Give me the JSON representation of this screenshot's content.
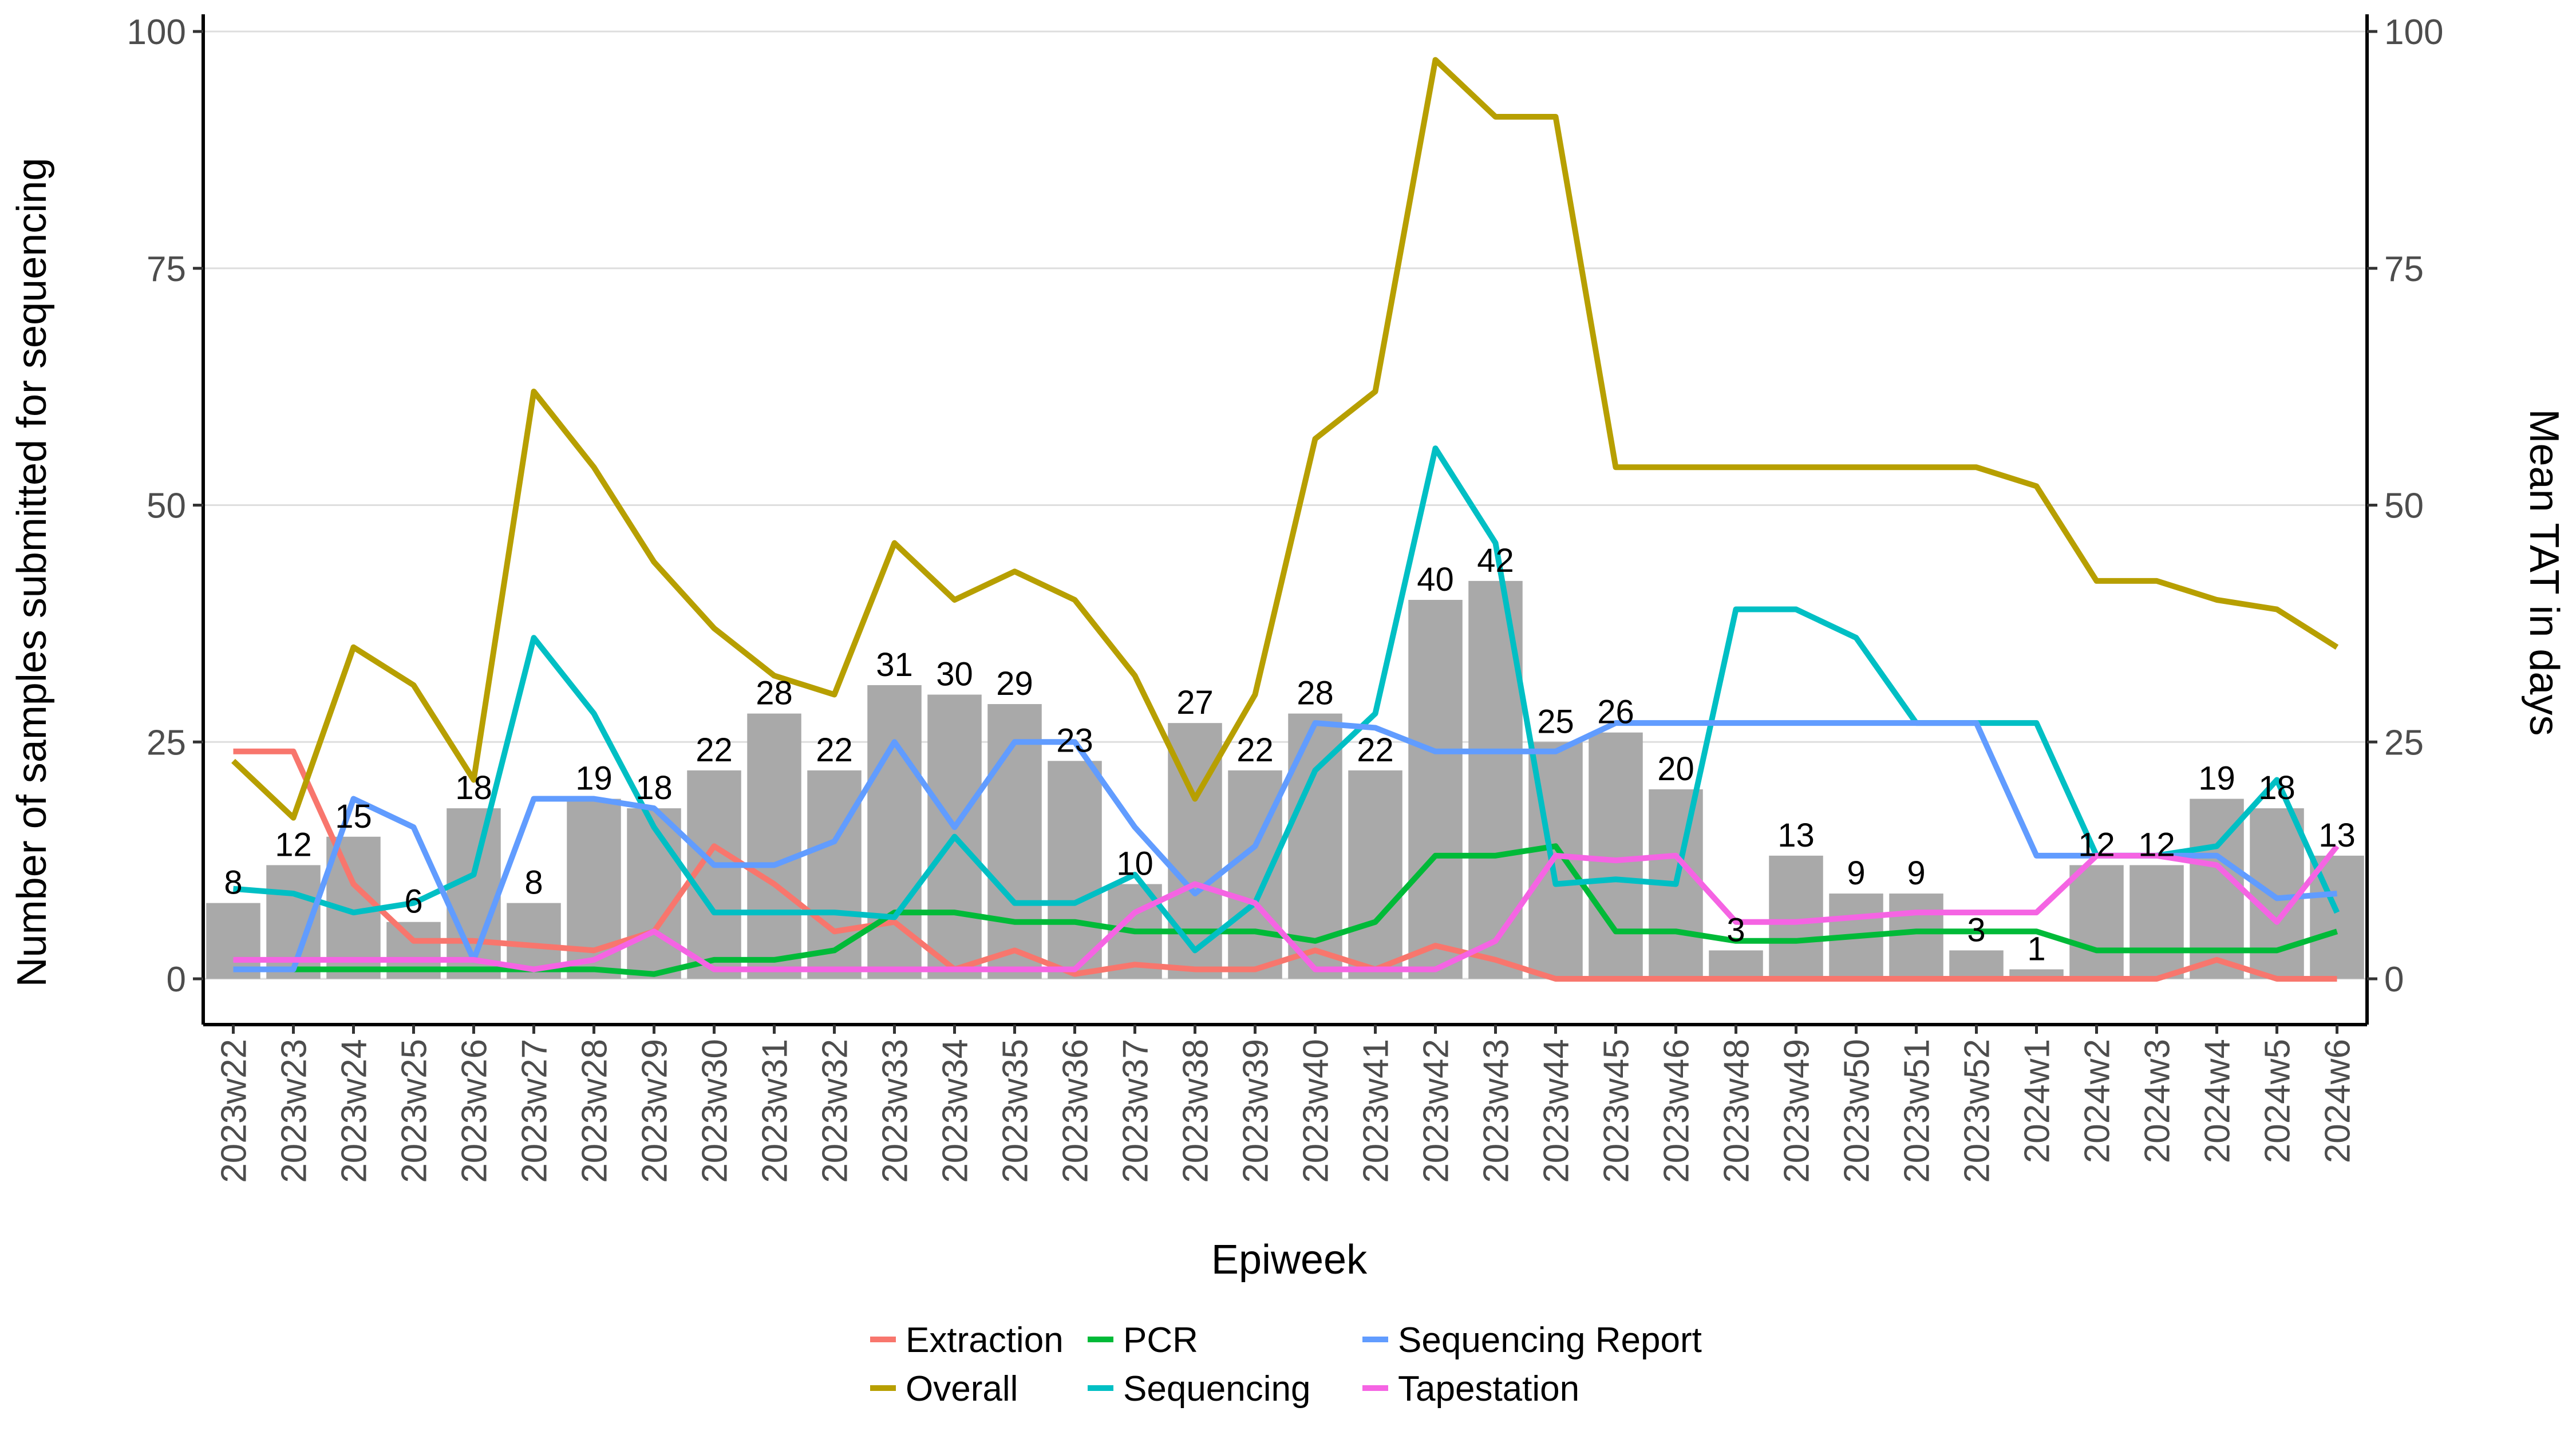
{
  "chart_data": {
    "type": "bar",
    "title": "",
    "xlabel": "Epiweek",
    "ylabel": "Number of samples submitted for sequencing",
    "y2label": "Mean TAT in days",
    "ylim": [
      0,
      100
    ],
    "y2lim": [
      0,
      100
    ],
    "yticks": [
      0,
      25,
      50,
      75,
      100
    ],
    "y2ticks": [
      0,
      25,
      50,
      75,
      100
    ],
    "grid": true,
    "legend_position": "bottom",
    "categories": [
      "2023w22",
      "2023w23",
      "2023w24",
      "2023w25",
      "2023w26",
      "2023w27",
      "2023w28",
      "2023w29",
      "2023w30",
      "2023w31",
      "2023w32",
      "2023w33",
      "2023w34",
      "2023w35",
      "2023w36",
      "2023w37",
      "2023w38",
      "2023w39",
      "2023w40",
      "2023w41",
      "2023w42",
      "2023w43",
      "2023w44",
      "2023w45",
      "2023w46",
      "2023w48",
      "2023w49",
      "2023w50",
      "2023w51",
      "2023w52",
      "2024w1",
      "2024w2",
      "2024w3",
      "2024w4",
      "2024w5",
      "2024w6"
    ],
    "bars": {
      "name": "Samples submitted",
      "color": "#a9a9a9",
      "values": [
        8,
        12,
        15,
        6,
        18,
        8,
        19,
        18,
        22,
        28,
        22,
        31,
        30,
        29,
        23,
        10,
        27,
        22,
        28,
        22,
        40,
        42,
        25,
        26,
        20,
        3,
        13,
        9,
        9,
        3,
        1,
        12,
        12,
        19,
        18,
        13
      ],
      "labels": [
        "8",
        "12",
        "15",
        "6",
        "18",
        "8",
        "19",
        "18",
        "22",
        "28",
        "22",
        "31",
        "30",
        "29",
        "23",
        "10",
        "27",
        "22",
        "28",
        "22",
        "40",
        "42",
        "25",
        "26",
        "20",
        "3",
        "13",
        "9",
        "9",
        "3",
        "1",
        "12",
        "12",
        "19",
        "18",
        "13"
      ]
    },
    "series": [
      {
        "name": "Extraction",
        "color": "#f8766d",
        "axis": "right",
        "values": [
          24,
          24,
          10,
          4,
          4,
          3.5,
          3,
          5,
          14,
          10,
          5,
          6,
          1,
          3,
          0.5,
          1.5,
          1,
          1,
          3,
          1,
          3.5,
          2,
          0,
          0,
          0,
          0,
          0,
          0,
          0,
          0,
          0,
          0,
          0,
          2,
          0,
          0
        ]
      },
      {
        "name": "Overall",
        "color": "#b79f00",
        "axis": "right",
        "values": [
          23,
          17,
          35,
          31,
          21,
          62,
          54,
          44,
          37,
          32,
          30,
          46,
          40,
          43,
          40,
          32,
          19,
          30,
          57,
          62,
          97,
          91,
          91,
          54,
          54,
          54,
          54,
          54,
          54,
          54,
          52,
          42,
          42,
          40,
          39,
          35
        ]
      },
      {
        "name": "PCR",
        "color": "#00ba38",
        "axis": "right",
        "values": [
          1,
          1,
          1,
          1,
          1,
          1,
          1,
          0.5,
          2,
          2,
          3,
          7,
          7,
          6,
          6,
          5,
          5,
          5,
          4,
          6,
          13,
          13,
          14,
          5,
          5,
          4,
          4,
          4.5,
          5,
          5,
          5,
          3,
          3,
          3,
          3,
          5
        ]
      },
      {
        "name": "Sequencing",
        "color": "#00bfc4",
        "axis": "right",
        "values": [
          9.5,
          9,
          7,
          8,
          11,
          36,
          28,
          16,
          7,
          7,
          7,
          6.5,
          15,
          8,
          8,
          11,
          3,
          8,
          22,
          28,
          56,
          46,
          10,
          10.5,
          10,
          39,
          39,
          36,
          27,
          27,
          27,
          13,
          13,
          14,
          21,
          7
        ]
      },
      {
        "name": "Sequencing Report",
        "color": "#619cff",
        "axis": "right",
        "values": [
          1,
          1,
          19,
          16,
          2,
          19,
          19,
          18,
          12,
          12,
          14.5,
          25,
          16,
          25,
          25,
          16,
          9,
          14,
          27,
          26.5,
          24,
          24,
          24,
          27,
          27,
          27,
          27,
          27,
          27,
          27,
          13,
          13,
          13,
          13,
          8.5,
          9
        ]
      },
      {
        "name": "Tapestation",
        "color": "#f564e3",
        "axis": "right",
        "values": [
          2,
          2,
          2,
          2,
          2,
          1,
          2,
          5,
          1,
          1,
          1,
          1,
          1,
          1,
          1,
          7,
          10,
          8,
          1,
          1,
          1,
          4,
          13,
          12.5,
          13,
          6,
          6,
          6.5,
          7,
          7,
          7,
          13,
          13,
          12,
          6,
          14
        ]
      }
    ],
    "legend": {
      "entries": [
        "Extraction",
        "PCR",
        "Sequencing Report",
        "Overall",
        "Sequencing",
        "Tapestation"
      ]
    }
  }
}
